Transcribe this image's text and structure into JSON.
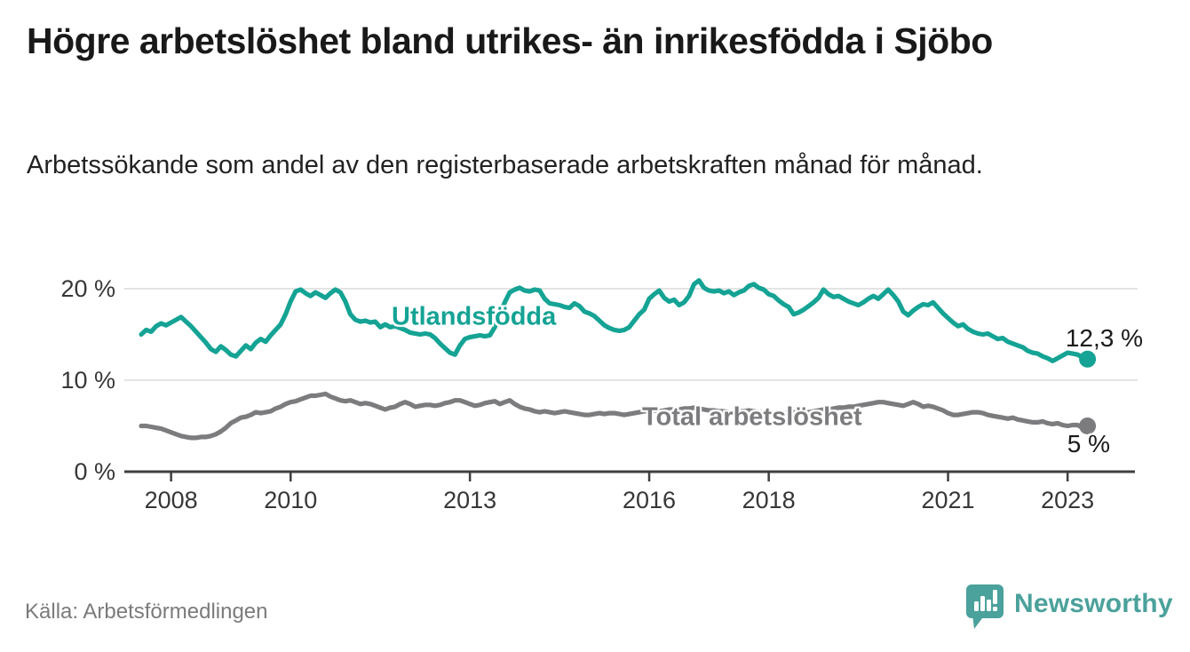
{
  "header": {
    "title": "Högre arbetslöshet bland utrikes- än inrikesfödda i Sjöbo",
    "subtitle": "Arbetssökande som andel av den registerbaserade arbetskraften månad för månad."
  },
  "footer": {
    "source": "Källa: Arbetsförmedlingen",
    "brand": "Newsworthy"
  },
  "colors": {
    "series_foreign_born": "#14a394",
    "series_total": "#7c7c7f",
    "grid": "#dcdcdc",
    "axis": "#3f3f3f",
    "tick_text": "#373737",
    "title_text": "#191919",
    "source_text": "#7b7b7b",
    "brand_teal": "#4ba19b"
  },
  "chart_data": {
    "type": "line",
    "title": "Högre arbetslöshet bland utrikes- än inrikesfödda i Sjöbo",
    "subtitle": "Arbetssökande som andel av den registerbaserade arbetskraften månad för månad.",
    "source": "Källa: Arbetsförmedlingen",
    "x_unit": "time, monthly observations",
    "x_start": 2008.0,
    "x_step_years": 0.0833333,
    "xlim": [
      2007.7,
      2024.1
    ],
    "ylim": [
      0,
      22
    ],
    "grid": "horizontal-only",
    "yticks": [
      {
        "value": 0,
        "label": "0 %"
      },
      {
        "value": 10,
        "label": "10 %"
      },
      {
        "value": 20,
        "label": "20 %"
      }
    ],
    "xticks": [
      {
        "x": 2008.5,
        "label": "2008"
      },
      {
        "x": 2010.5,
        "label": "2010"
      },
      {
        "x": 2013.5,
        "label": "2013"
      },
      {
        "x": 2016.5,
        "label": "2016"
      },
      {
        "x": 2018.5,
        "label": "2018"
      },
      {
        "x": 2021.5,
        "label": "2021"
      },
      {
        "x": 2023.5,
        "label": "2023"
      }
    ],
    "series": [
      {
        "name": "Utlandsfödda",
        "color": "#14a394",
        "end_label": "12,3 %",
        "end_value": 12.3,
        "values": [
          15.0,
          15.5,
          15.3,
          15.9,
          16.2,
          16.0,
          16.3,
          16.6,
          16.9,
          16.4,
          15.9,
          15.3,
          14.7,
          14.1,
          13.4,
          13.1,
          13.7,
          13.3,
          12.8,
          12.6,
          13.2,
          13.8,
          13.4,
          14.1,
          14.5,
          14.2,
          14.9,
          15.5,
          16.1,
          17.2,
          18.6,
          19.7,
          19.9,
          19.5,
          19.2,
          19.6,
          19.3,
          19.0,
          19.5,
          19.9,
          19.6,
          18.6,
          17.2,
          16.6,
          16.4,
          16.5,
          16.3,
          16.4,
          15.8,
          16.1,
          15.8,
          15.9,
          15.7,
          15.5,
          15.2,
          15.1,
          15.0,
          15.1,
          15.0,
          14.6,
          14.0,
          13.5,
          13.0,
          12.8,
          13.8,
          14.5,
          14.7,
          14.8,
          14.9,
          14.8,
          14.9,
          15.8,
          17.2,
          18.5,
          19.6,
          19.9,
          20.1,
          19.8,
          19.7,
          19.9,
          19.8,
          18.9,
          18.4,
          18.3,
          18.2,
          18.0,
          17.9,
          18.4,
          18.1,
          17.5,
          17.3,
          17.0,
          16.5,
          16.0,
          15.7,
          15.5,
          15.4,
          15.5,
          15.8,
          16.5,
          17.2,
          17.7,
          18.9,
          19.4,
          19.8,
          19.0,
          18.6,
          18.8,
          18.2,
          18.5,
          19.2,
          20.5,
          20.9,
          20.1,
          19.8,
          19.7,
          19.8,
          19.5,
          19.7,
          19.3,
          19.6,
          19.8,
          20.3,
          20.5,
          20.1,
          19.9,
          19.4,
          19.2,
          18.7,
          18.3,
          18.0,
          17.2,
          17.4,
          17.7,
          18.1,
          18.5,
          19.0,
          19.9,
          19.4,
          19.1,
          19.2,
          18.9,
          18.6,
          18.4,
          18.2,
          18.5,
          18.9,
          19.2,
          18.9,
          19.4,
          19.9,
          19.3,
          18.6,
          17.5,
          17.1,
          17.6,
          18.0,
          18.3,
          18.2,
          18.5,
          17.9,
          17.3,
          16.8,
          16.3,
          15.9,
          16.1,
          15.6,
          15.3,
          15.1,
          15.0,
          15.1,
          14.8,
          14.5,
          14.6,
          14.2,
          14.0,
          13.8,
          13.6,
          13.2,
          13.0,
          12.9,
          12.6,
          12.4,
          12.1,
          12.4,
          12.7,
          13.0,
          12.9,
          12.8,
          12.5,
          12.3
        ]
      },
      {
        "name": "Total arbetslöshet",
        "color": "#7c7c7f",
        "end_label": "5 %",
        "end_value": 5.0,
        "values": [
          5.0,
          5.0,
          4.9,
          4.8,
          4.7,
          4.5,
          4.3,
          4.1,
          3.9,
          3.8,
          3.7,
          3.7,
          3.8,
          3.8,
          3.9,
          4.1,
          4.4,
          4.8,
          5.3,
          5.6,
          5.9,
          6.0,
          6.2,
          6.5,
          6.4,
          6.5,
          6.6,
          6.9,
          7.1,
          7.4,
          7.6,
          7.7,
          7.9,
          8.1,
          8.3,
          8.3,
          8.4,
          8.5,
          8.2,
          8.0,
          7.8,
          7.7,
          7.8,
          7.6,
          7.4,
          7.5,
          7.4,
          7.2,
          7.0,
          6.8,
          7.0,
          7.1,
          7.4,
          7.6,
          7.4,
          7.1,
          7.2,
          7.3,
          7.3,
          7.2,
          7.3,
          7.5,
          7.6,
          7.8,
          7.8,
          7.6,
          7.4,
          7.2,
          7.3,
          7.5,
          7.6,
          7.7,
          7.4,
          7.6,
          7.8,
          7.4,
          7.1,
          6.9,
          6.8,
          6.6,
          6.5,
          6.6,
          6.5,
          6.4,
          6.5,
          6.6,
          6.5,
          6.4,
          6.3,
          6.2,
          6.2,
          6.3,
          6.4,
          6.3,
          6.4,
          6.4,
          6.3,
          6.2,
          6.3,
          6.4,
          6.5,
          6.6,
          6.6,
          6.7,
          6.6,
          6.7,
          6.8,
          6.8,
          6.8,
          6.9,
          6.9,
          7.0,
          6.9,
          6.8,
          6.7,
          6.7,
          6.6,
          6.6,
          6.5,
          6.5,
          6.6,
          6.6,
          6.7,
          6.6,
          6.5,
          6.5,
          6.4,
          6.4,
          6.3,
          6.4,
          6.4,
          6.5,
          6.4,
          6.5,
          6.5,
          6.6,
          6.7,
          6.8,
          6.8,
          6.9,
          7.0,
          7.0,
          7.1,
          7.1,
          7.2,
          7.3,
          7.4,
          7.5,
          7.6,
          7.6,
          7.5,
          7.4,
          7.3,
          7.2,
          7.4,
          7.6,
          7.4,
          7.1,
          7.2,
          7.1,
          6.9,
          6.7,
          6.4,
          6.2,
          6.2,
          6.3,
          6.4,
          6.5,
          6.5,
          6.4,
          6.2,
          6.1,
          6.0,
          5.9,
          5.8,
          5.9,
          5.7,
          5.6,
          5.5,
          5.4,
          5.4,
          5.5,
          5.3,
          5.2,
          5.3,
          5.1,
          5.0,
          5.1,
          5.1,
          4.8,
          5.0
        ]
      }
    ],
    "legend_position": "labels-on-lines"
  }
}
